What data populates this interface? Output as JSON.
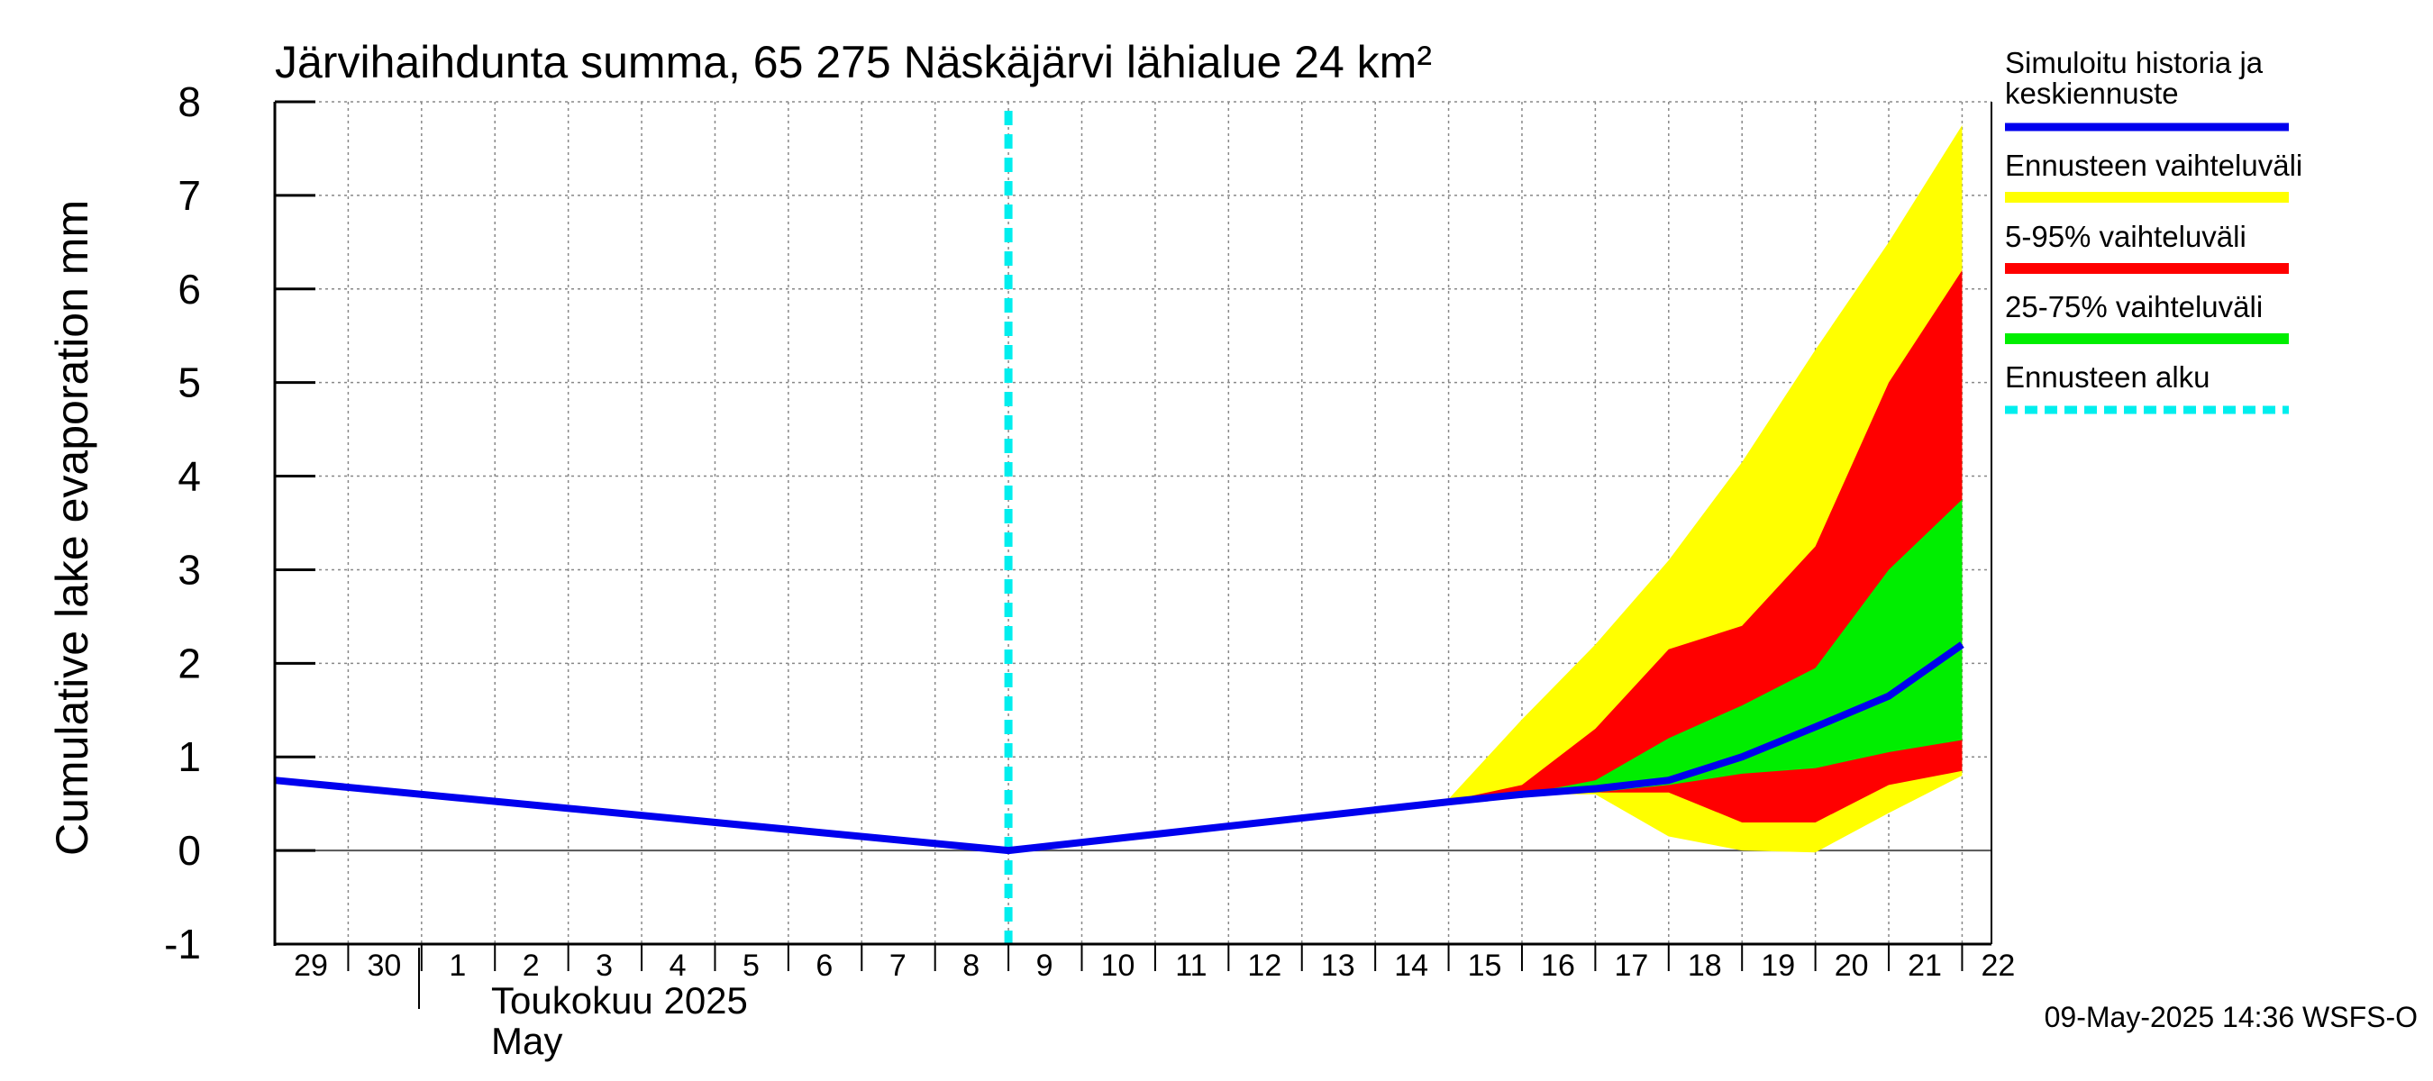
{
  "chart_data": {
    "type": "area",
    "title": "Järvihaihdunta summa, 65 275 Näskäjärvi lähialue 24 km²",
    "ylabel": "Cumulative lake evaporation   mm",
    "xlabel_fi": "Toukokuu  2025",
    "xlabel_en": "May",
    "ylim": [
      -1,
      8
    ],
    "yticks": [
      "-1",
      "0",
      "1",
      "2",
      "3",
      "4",
      "5",
      "6",
      "7",
      "8"
    ],
    "x_ticks": [
      "29",
      "30",
      "1",
      "2",
      "3",
      "4",
      "5",
      "6",
      "7",
      "8",
      "9",
      "10",
      "11",
      "12",
      "13",
      "14",
      "15",
      "16",
      "17",
      "18",
      "19",
      "20",
      "21",
      "22"
    ],
    "forecast_start": "9",
    "footer": "09-May-2025 14:36 WSFS-O",
    "colors": {
      "history": "#0000ee",
      "range_full": "#ffff00",
      "range_5_95": "#ff0000",
      "range_25_75": "#00ee00",
      "forecast_start": "#00eeee"
    },
    "series": [
      {
        "name": "Simuloitu historia ja keskiennuste",
        "type": "line",
        "x": [
          0,
          10,
          16,
          17,
          18,
          19,
          20,
          21,
          22,
          23
        ],
        "values": [
          0.75,
          0.0,
          0.52,
          0.6,
          0.66,
          0.75,
          1.0,
          1.32,
          1.65,
          2.2
        ]
      },
      {
        "name": "Ennusteen vaihteluväli",
        "type": "band",
        "x": [
          16,
          17,
          18,
          19,
          20,
          21,
          22,
          23
        ],
        "upper": [
          0.55,
          1.4,
          2.2,
          3.1,
          4.15,
          5.35,
          6.5,
          7.75
        ],
        "lower": [
          0.5,
          0.6,
          0.6,
          0.15,
          0.0,
          -0.02,
          0.4,
          0.8
        ]
      },
      {
        "name": "5-95% vaihteluväli",
        "type": "band",
        "x": [
          16,
          17,
          18,
          19,
          20,
          21,
          22,
          23
        ],
        "upper": [
          0.53,
          0.7,
          1.3,
          2.15,
          2.4,
          3.25,
          5.0,
          6.2
        ],
        "lower": [
          0.51,
          0.6,
          0.62,
          0.62,
          0.3,
          0.3,
          0.7,
          0.85
        ]
      },
      {
        "name": "25-75% vaihteluväli",
        "type": "band",
        "x": [
          17,
          18,
          19,
          20,
          21,
          22,
          23
        ],
        "upper": [
          0.6,
          0.75,
          1.2,
          1.55,
          1.95,
          3.0,
          3.75
        ],
        "lower": [
          0.6,
          0.62,
          0.7,
          0.82,
          0.88,
          1.05,
          1.18
        ]
      },
      {
        "name": "Ennusteen alku",
        "type": "vline"
      }
    ]
  }
}
